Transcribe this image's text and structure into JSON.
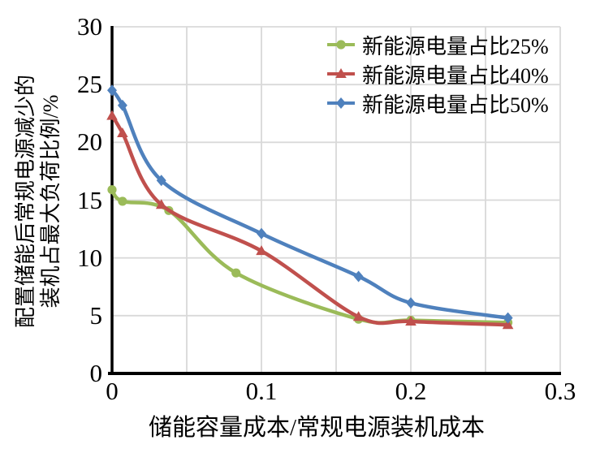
{
  "chart_data": {
    "type": "line",
    "title": "",
    "xlabel": "储能容量成本/常规电源装机成本",
    "ylabel_line1": "配置储能后常规电源减少的",
    "ylabel_line2": "装机占最大负荷比例/%",
    "xlim": [
      0,
      0.3
    ],
    "ylim": [
      0,
      30
    ],
    "x_major_ticks": [
      0,
      0.1,
      0.2,
      0.3
    ],
    "xtick_labels": [
      "0",
      "0.1",
      "0.2",
      "0.3"
    ],
    "x_grid_interval": 0.05,
    "ytick_values": [
      0,
      5,
      10,
      15,
      20,
      25,
      30
    ],
    "ytick_labels": [
      "0",
      "5",
      "10",
      "15",
      "20",
      "25",
      "30"
    ],
    "grid": true,
    "grid_color": "#d9d9d9",
    "axis_color": "#000000",
    "legend_position": "inside-top-right",
    "series": [
      {
        "name": "新能源电量占比25%",
        "color": "#9bbb59",
        "marker": "circle",
        "points": [
          [
            0,
            15.9
          ],
          [
            0.007,
            14.9
          ],
          [
            0.038,
            14.1
          ],
          [
            0.083,
            8.7
          ],
          [
            0.165,
            4.7
          ],
          [
            0.2,
            4.6
          ],
          [
            0.265,
            4.4
          ]
        ]
      },
      {
        "name": "新能源电量占比40%",
        "color": "#c0504d",
        "marker": "triangle",
        "points": [
          [
            0,
            22.3
          ],
          [
            0.007,
            20.8
          ],
          [
            0.033,
            14.6
          ],
          [
            0.1,
            10.6
          ],
          [
            0.165,
            4.9
          ],
          [
            0.2,
            4.5
          ],
          [
            0.265,
            4.2
          ]
        ]
      },
      {
        "name": "新能源电量占比50%",
        "color": "#4f81bd",
        "marker": "diamond",
        "points": [
          [
            0,
            24.5
          ],
          [
            0.007,
            23.2
          ],
          [
            0.033,
            16.7
          ],
          [
            0.1,
            12.1
          ],
          [
            0.165,
            8.4
          ],
          [
            0.2,
            6.1
          ],
          [
            0.265,
            4.8
          ]
        ]
      }
    ]
  }
}
